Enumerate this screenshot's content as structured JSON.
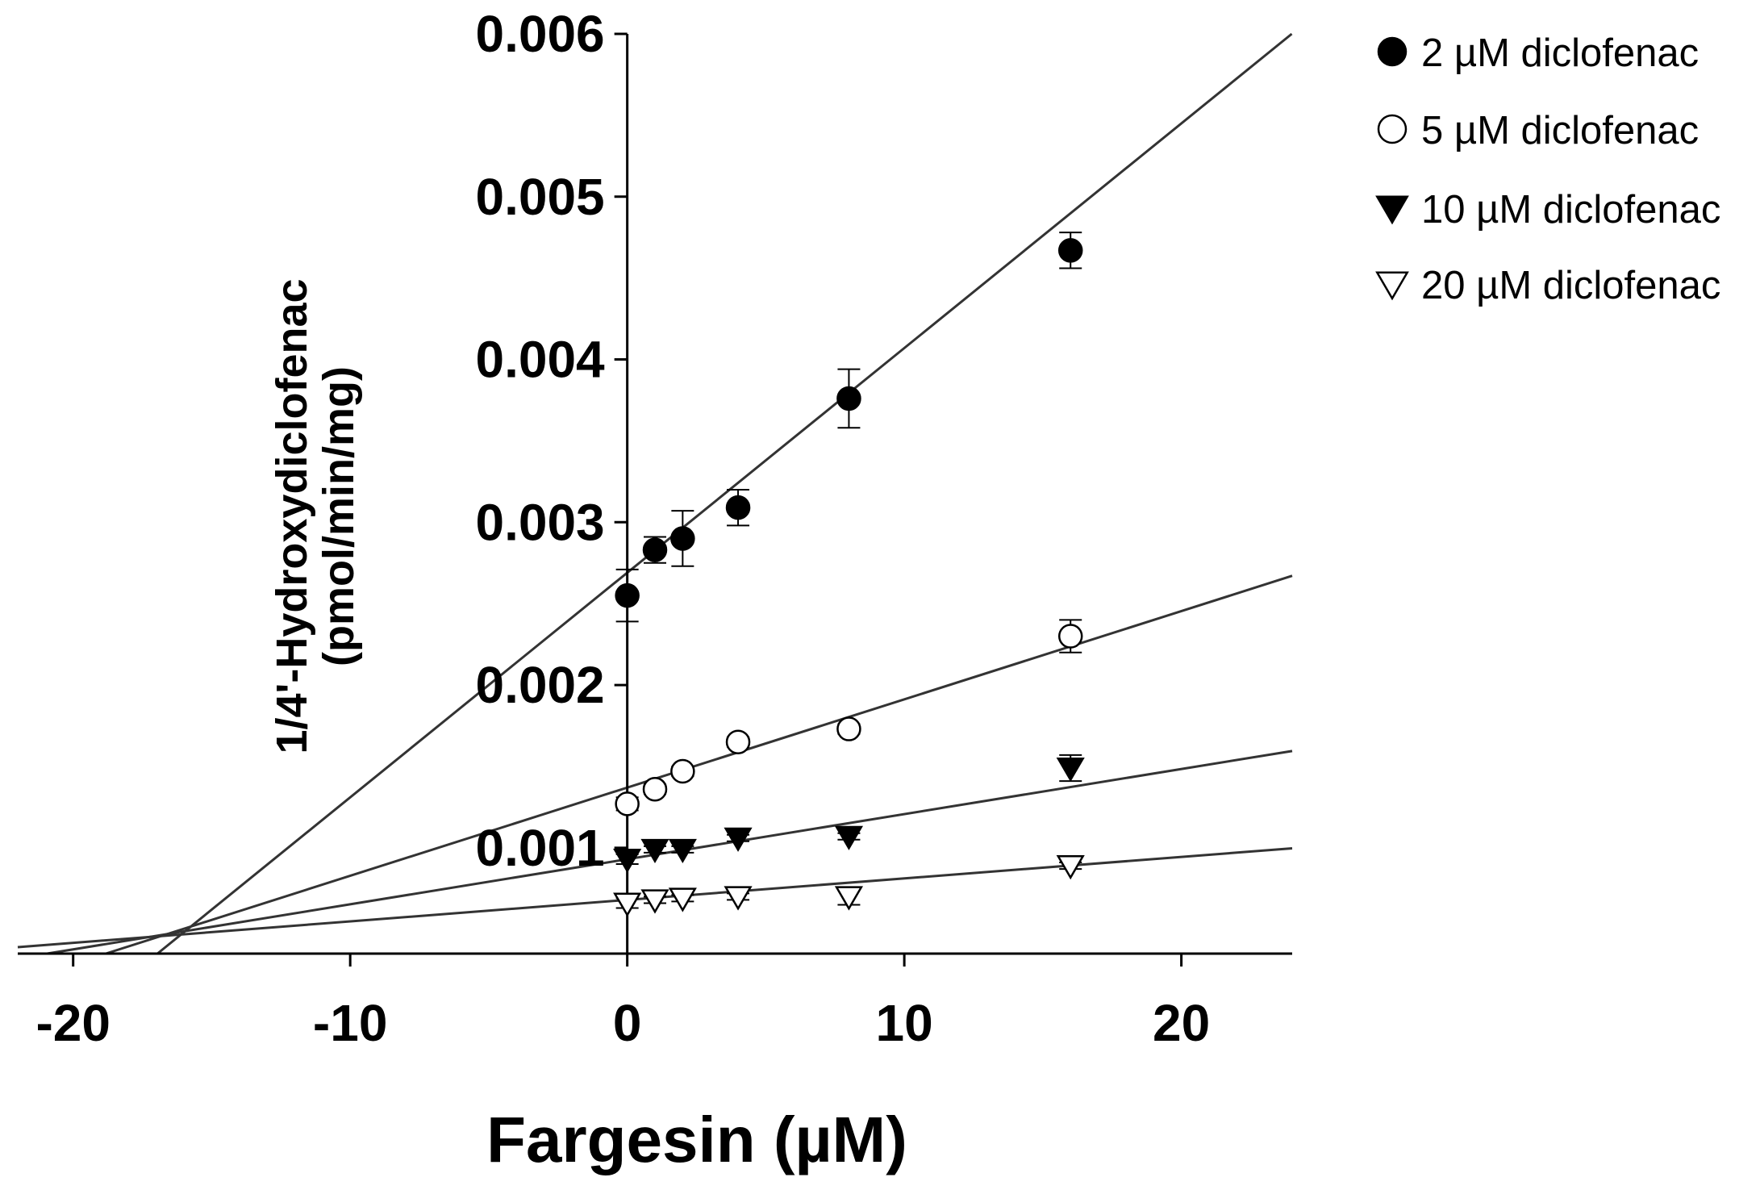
{
  "chart_data": {
    "type": "scatter",
    "title": "",
    "xlabel": "Fargesin (µM)",
    "ylabel_line1": "1/4'-Hydroxydiclofenac",
    "ylabel_line2": "(pmol/min/mg)",
    "xlim": [
      -22,
      24
    ],
    "ylim": [
      0.00035,
      0.006
    ],
    "x_ticks": [
      {
        "value": -20,
        "label": "-20"
      },
      {
        "value": -10,
        "label": "-10"
      },
      {
        "value": 0,
        "label": "0"
      },
      {
        "value": 10,
        "label": "10"
      },
      {
        "value": 20,
        "label": "20"
      }
    ],
    "y_ticks": [
      {
        "value": 0.001,
        "label": "0.001"
      },
      {
        "value": 0.002,
        "label": "0.002"
      },
      {
        "value": 0.003,
        "label": "0.003"
      },
      {
        "value": 0.004,
        "label": "0.004"
      },
      {
        "value": 0.005,
        "label": "0.005"
      },
      {
        "value": 0.006,
        "label": "0.006"
      }
    ],
    "legend_position": "top-right, outside plot",
    "series": [
      {
        "name": "2 µM diclofenac",
        "marker": "filled-circle",
        "x": [
          0,
          1,
          2,
          4,
          8,
          16
        ],
        "y": [
          0.00255,
          0.00283,
          0.0029,
          0.00309,
          0.00376,
          0.00467
        ],
        "err": [
          0.00016,
          8e-05,
          0.00017,
          0.00011,
          0.00018,
          0.00011
        ],
        "fit": {
          "slope": 0.000138,
          "intercept": 0.00269
        }
      },
      {
        "name": "5 µM diclofenac",
        "marker": "open-circle",
        "x": [
          0,
          1,
          2,
          4,
          8,
          16
        ],
        "y": [
          0.00127,
          0.00136,
          0.00147,
          0.00165,
          0.00173,
          0.0023
        ],
        "err": [
          4e-05,
          3e-05,
          3e-05,
          3e-05,
          3e-05,
          0.0001
        ],
        "fit": {
          "slope": 5.42e-05,
          "intercept": 0.00137
        }
      },
      {
        "name": "10 µM diclofenac",
        "marker": "filled-triangle-down",
        "x": [
          0,
          1,
          2,
          4,
          8,
          16
        ],
        "y": [
          0.00093,
          0.00099,
          0.00099,
          0.00106,
          0.00107,
          0.00149
        ],
        "err": [
          3e-05,
          2e-05,
          2e-05,
          2e-05,
          2e-05,
          8e-05
        ],
        "fit": {
          "slope": 2.77e-05,
          "intercept": 0.00093
        }
      },
      {
        "name": "20 µM diclofenac",
        "marker": "open-triangle-down",
        "x": [
          0,
          1,
          2,
          4,
          8,
          16
        ],
        "y": [
          0.00066,
          0.00068,
          0.00069,
          0.0007,
          0.0007,
          0.00089
        ],
        "err": [
          3e-05,
          2e-05,
          2e-05,
          2e-05,
          5e-05,
          2e-05
        ],
        "fit": {
          "slope": 1.32e-05,
          "intercept": 0.00068
        }
      }
    ]
  },
  "colors": {
    "ink": "#000000",
    "line": "#333333",
    "marker_fill_open": "#ffffff"
  }
}
